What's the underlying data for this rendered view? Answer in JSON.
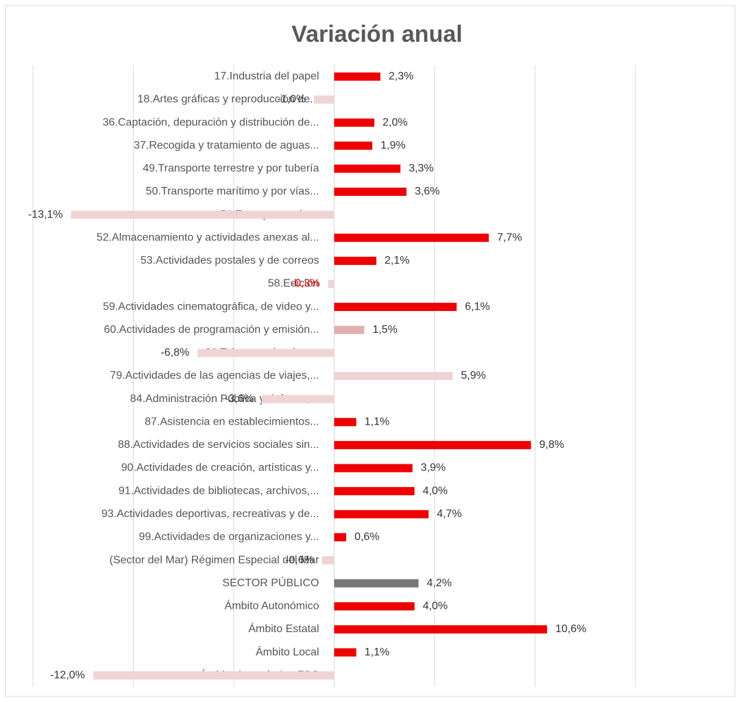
{
  "chart_data": {
    "type": "bar",
    "orientation": "horizontal",
    "title": "Variación anual",
    "categories": [
      "17.Industria del papel",
      "18.Artes gráficas y reproducción de...",
      "36.Captación, depuración y distribución de...",
      "37.Recogida y tratamiento de aguas...",
      "49.Transporte terrestre y por tubería",
      "50.Transporte marítimo y por vías...",
      "51.Transporte aéreo",
      "52.Almacenamiento y actividades anexas al...",
      "53.Actividades postales y de correos",
      "58.Edición",
      "59.Actividades cinematográfica, de video y...",
      "60.Actividades de programación y emisión...",
      "61.Telecomunicaciones",
      "79.Actividades de las agencias de viajes,...",
      "84.Administración Pública y defensa;...",
      "87.Asistencia en establecimientos...",
      "88.Actividades de servicios sociales sin...",
      "90.Actividades de creación, artísticas y...",
      "91.Actividades de bibliotecas, archivos,...",
      "93.Actividades deportivas, recreativas y de...",
      "99.Actividades de organizaciones y...",
      "(Sector del Mar) Régimen Especial del Mar",
      "SECTOR PÚBLICO",
      "Ámbito Autonómico",
      "Ámbito Estatal",
      "Ámbito Local",
      "Ámbito Autonómico FSC"
    ],
    "values": [
      2.3,
      -1.0,
      2.0,
      1.9,
      3.3,
      3.6,
      -13.1,
      7.7,
      2.1,
      -0.3,
      6.1,
      1.5,
      -6.8,
      5.9,
      -3.6,
      1.1,
      9.8,
      3.9,
      4.0,
      4.7,
      0.6,
      -0.6,
      4.2,
      4.0,
      10.6,
      1.1,
      -12.0
    ],
    "value_labels": [
      "2,3%",
      "-1,0%",
      "2,0%",
      "1,9%",
      "3,3%",
      "3,6%",
      "-13,1%",
      "7,7%",
      "2,1%",
      "-0,3%",
      "6,1%",
      "1,5%",
      "-6,8%",
      "5,9%",
      "-3,6%",
      "1,1%",
      "9,8%",
      "3,9%",
      "4,0%",
      "4,7%",
      "0,6%",
      "-0,6%",
      "4,2%",
      "4,0%",
      "10,6%",
      "1,1%",
      "-12,0%"
    ],
    "colors": [
      "#ee0000",
      "#f0d4d4",
      "#ee0000",
      "#ee0000",
      "#ee0000",
      "#ee0000",
      "#f0d4d4",
      "#ee0000",
      "#ee0000",
      "#f0d4d4",
      "#ee0000",
      "#e0b0b0",
      "#f0d4d4",
      "#f0d4d4",
      "#f0d4d4",
      "#ee0000",
      "#ee0000",
      "#ee0000",
      "#ee0000",
      "#ee0000",
      "#ee0000",
      "#f0d4d4",
      "#777777",
      "#ee0000",
      "#ee0000",
      "#ee0000",
      "#f0d4d4"
    ],
    "label_colors": [
      "#333333",
      "#333333",
      "#333333",
      "#333333",
      "#333333",
      "#333333",
      "#333333",
      "#333333",
      "#333333",
      "#ee0000",
      "#333333",
      "#333333",
      "#333333",
      "#333333",
      "#333333",
      "#333333",
      "#333333",
      "#333333",
      "#333333",
      "#333333",
      "#333333",
      "#333333",
      "#333333",
      "#333333",
      "#333333",
      "#333333",
      "#333333"
    ],
    "xlim": [
      -15,
      15
    ],
    "xticks": [
      -15,
      -10,
      -5,
      0,
      5,
      10,
      15
    ],
    "grid": true
  }
}
